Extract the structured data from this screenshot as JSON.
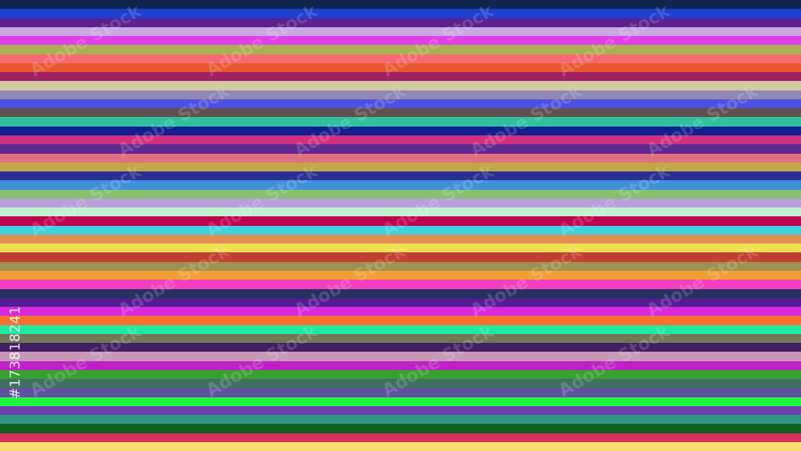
{
  "image": {
    "watermark_text": "Adobe Stock",
    "stock_id": "#173818241",
    "stripe_colors": [
      "#10264f",
      "#1d3fcf",
      "#5a2090",
      "#c8a8e0",
      "#e040e8",
      "#a8b050",
      "#f86870",
      "#e85830",
      "#a02060",
      "#d0c8a0",
      "#9088b0",
      "#5050e0",
      "#605050",
      "#30c0a0",
      "#102090",
      "#d03080",
      "#602890",
      "#e07080",
      "#c0a848",
      "#283090",
      "#4090d8",
      "#88c070",
      "#b8a0d8",
      "#c0f0d0",
      "#c00050",
      "#40d0e0",
      "#e09050",
      "#f0e050",
      "#c04030",
      "#a09050",
      "#f0a030",
      "#f040c0",
      "#283060",
      "#502090",
      "#d828e0",
      "#f87030",
      "#20e8a0",
      "#707858",
      "#402060",
      "#c898b8",
      "#c020c8",
      "#38a030",
      "#407060",
      "#6050a0",
      "#20f840",
      "#7040b0",
      "#309880",
      "#106020",
      "#d83060",
      "#f8e070"
    ]
  }
}
